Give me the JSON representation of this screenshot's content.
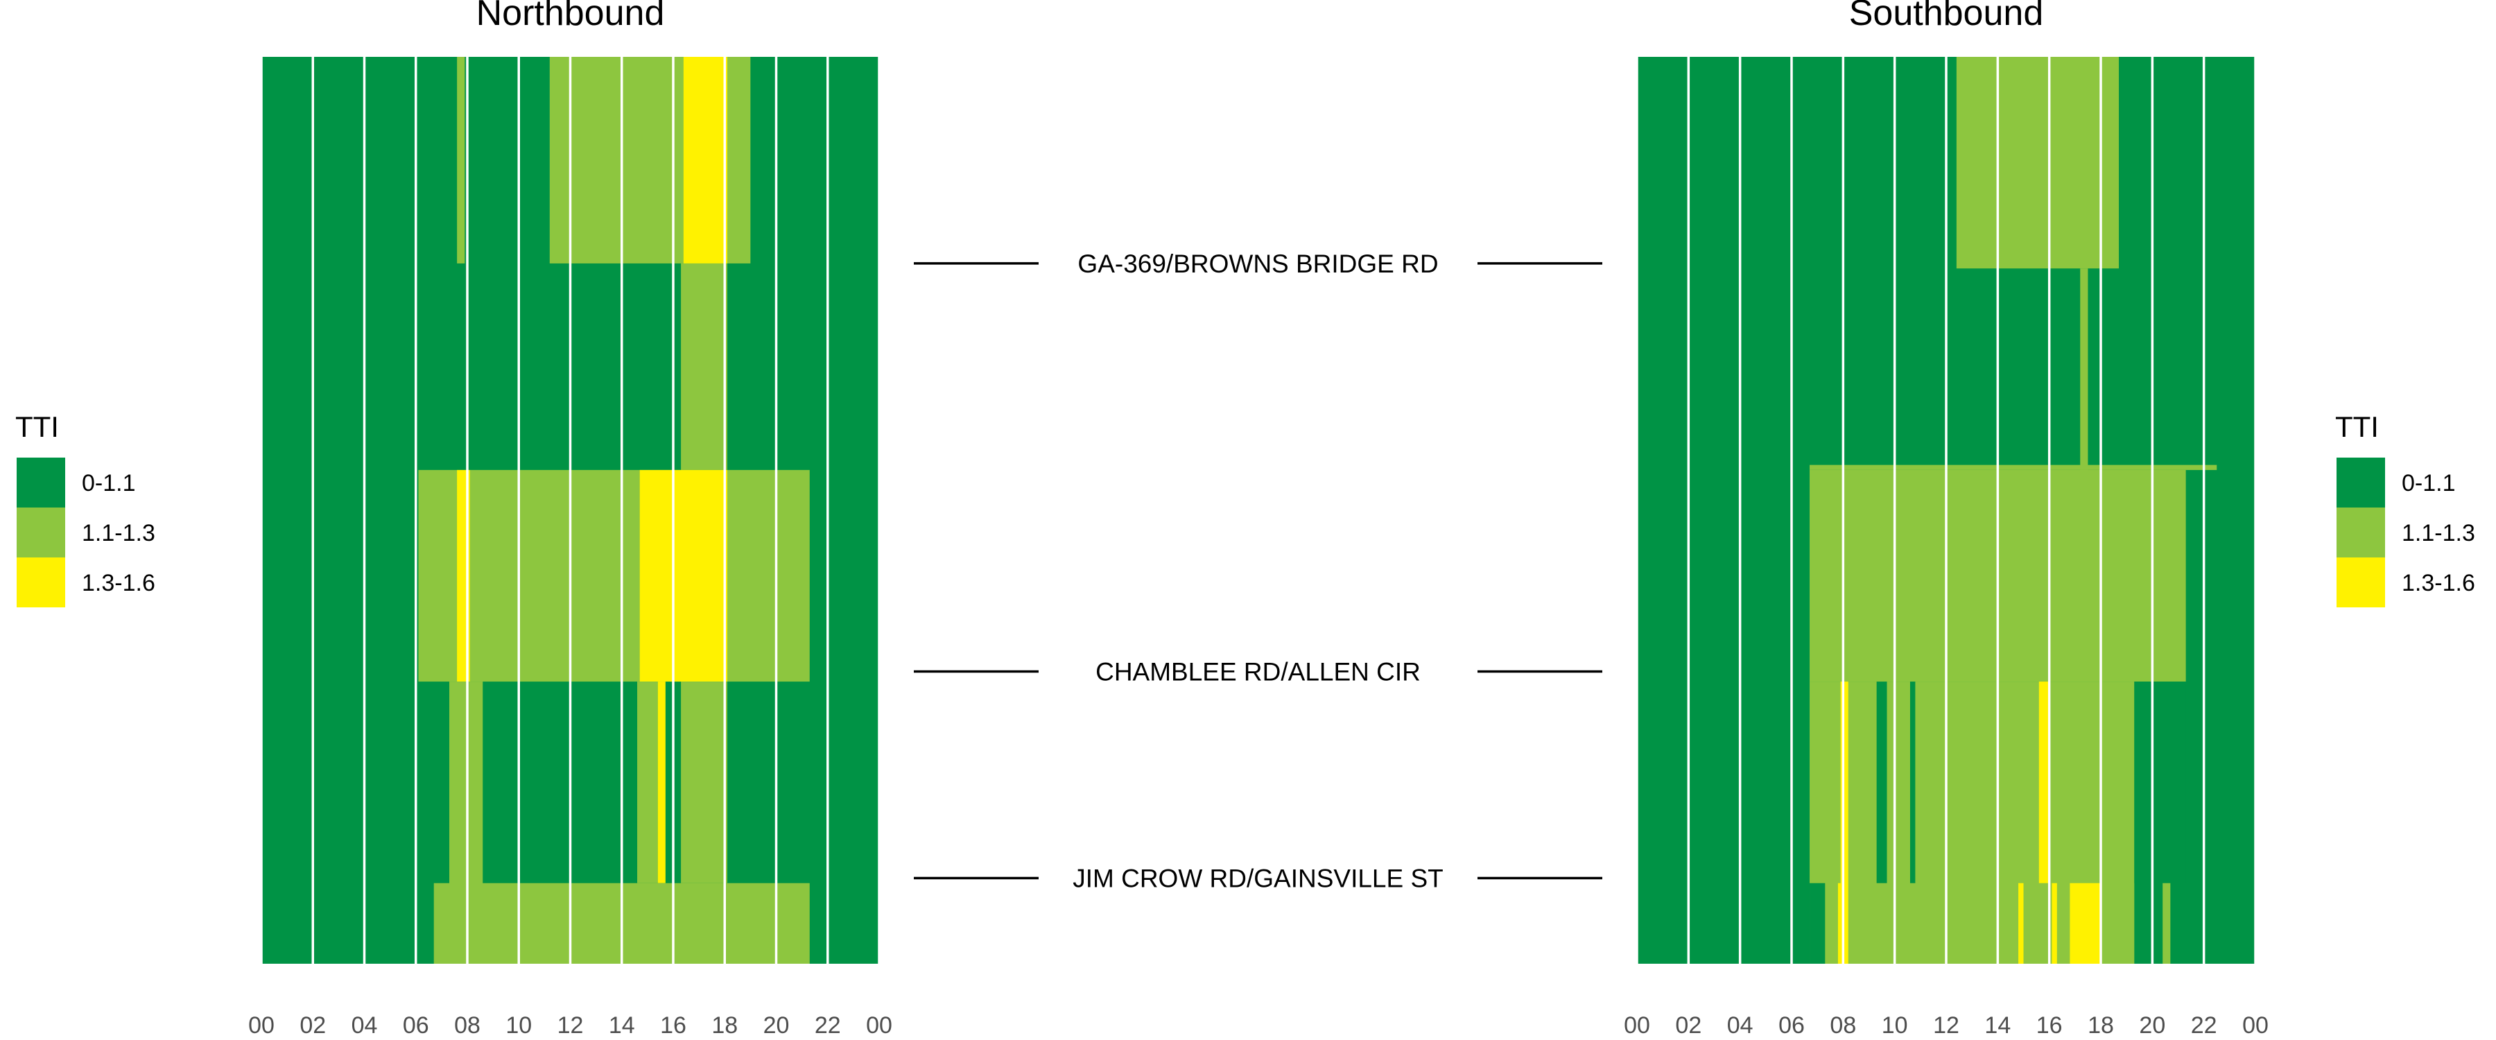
{
  "chart_data": {
    "type": "heatmap",
    "legend": {
      "title": "TTI",
      "position": "both sides (left and right)",
      "entries": [
        {
          "label": "0-1.1",
          "color": "#009345"
        },
        {
          "label": "1.1-1.3",
          "color": "#8DC63F"
        },
        {
          "label": "1.3-1.6",
          "color": "#FFF200"
        }
      ]
    },
    "x_axis": {
      "range_hours": [
        0,
        24
      ],
      "tick_labels": [
        "00",
        "02",
        "04",
        "06",
        "08",
        "10",
        "12",
        "14",
        "16",
        "18",
        "20",
        "22",
        "00"
      ]
    },
    "y_axis": {
      "range_miles": [
        0,
        9
      ],
      "note": "distance along corridor, increasing upward (approximate)"
    },
    "segment_markers": [
      {
        "label": "GA-369/BROWNS BRIDGE RD",
        "position": 6.95
      },
      {
        "label": "CHAMBLEE RD/ALLEN CIR",
        "position": 2.9
      },
      {
        "label": "JIM CROW RD/GAINSVILLE ST",
        "position": 0.85
      }
    ],
    "panels": [
      {
        "title": "Northbound",
        "background_class": "0-1.1",
        "cells": [
          {
            "hours": [
              11.2,
              19.0
            ],
            "miles": [
              6.95,
              9.0
            ],
            "class": "1.1-1.3"
          },
          {
            "hours": [
              7.6,
              7.9
            ],
            "miles": [
              6.95,
              9.0
            ],
            "class": "1.1-1.3"
          },
          {
            "hours": [
              16.4,
              18.1
            ],
            "miles": [
              6.95,
              9.0
            ],
            "class": "1.3-1.6"
          },
          {
            "hours": [
              16.3,
              18.1
            ],
            "miles": [
              4.9,
              6.95
            ],
            "class": "1.1-1.3"
          },
          {
            "hours": [
              6.1,
              21.3
            ],
            "miles": [
              2.8,
              4.9
            ],
            "class": "1.1-1.3"
          },
          {
            "hours": [
              7.6,
              8.1
            ],
            "miles": [
              2.8,
              4.9
            ],
            "class": "1.3-1.6"
          },
          {
            "hours": [
              14.7,
              18.1
            ],
            "miles": [
              2.8,
              4.9
            ],
            "class": "1.3-1.6"
          },
          {
            "hours": [
              7.3,
              8.6
            ],
            "miles": [
              0.0,
              2.8
            ],
            "class": "1.1-1.3"
          },
          {
            "hours": [
              14.6,
              15.4
            ],
            "miles": [
              0.8,
              2.8
            ],
            "class": "1.1-1.3"
          },
          {
            "hours": [
              15.4,
              15.7
            ],
            "miles": [
              0.8,
              2.8
            ],
            "class": "1.3-1.6"
          },
          {
            "hours": [
              16.3,
              18.1
            ],
            "miles": [
              0.8,
              2.8
            ],
            "class": "1.1-1.3"
          },
          {
            "hours": [
              6.7,
              21.3
            ],
            "miles": [
              0.0,
              0.8
            ],
            "class": "1.1-1.3"
          }
        ]
      },
      {
        "title": "Southbound",
        "background_class": "0-1.1",
        "cells": [
          {
            "hours": [
              12.4,
              18.7
            ],
            "miles": [
              6.9,
              9.0
            ],
            "class": "1.1-1.3"
          },
          {
            "hours": [
              17.2,
              17.5
            ],
            "miles": [
              4.9,
              6.9
            ],
            "class": "1.1-1.3"
          },
          {
            "hours": [
              6.7,
              22.5
            ],
            "miles": [
              4.9,
              4.95
            ],
            "class": "1.1-1.3"
          },
          {
            "hours": [
              6.7,
              21.3
            ],
            "miles": [
              2.8,
              4.9
            ],
            "class": "1.1-1.3"
          },
          {
            "hours": [
              6.7,
              19.3
            ],
            "miles": [
              0.0,
              2.8
            ],
            "class": "1.1-1.3"
          },
          {
            "hours": [
              7.9,
              8.2
            ],
            "miles": [
              0.0,
              2.8
            ],
            "class": "1.3-1.6"
          },
          {
            "hours": [
              9.3,
              9.7
            ],
            "miles": [
              0.8,
              2.8
            ],
            "class": "0-1.1"
          },
          {
            "hours": [
              10.6,
              10.8
            ],
            "miles": [
              0.8,
              2.8
            ],
            "class": "0-1.1"
          },
          {
            "hours": [
              15.6,
              16.0
            ],
            "miles": [
              0.8,
              2.8
            ],
            "class": "1.3-1.6"
          },
          {
            "hours": [
              19.3,
              21.3
            ],
            "miles": [
              0.8,
              2.8
            ],
            "class": "0-1.1"
          },
          {
            "hours": [
              20.4,
              20.7
            ],
            "miles": [
              0.0,
              0.8
            ],
            "class": "1.1-1.3"
          },
          {
            "hours": [
              6.7,
              7.3
            ],
            "miles": [
              0.0,
              0.8
            ],
            "class": "0-1.1"
          },
          {
            "hours": [
              16.8,
              18.0
            ],
            "miles": [
              0.0,
              0.8
            ],
            "class": "1.3-1.6"
          },
          {
            "hours": [
              16.1,
              16.3
            ],
            "miles": [
              0.0,
              0.8
            ],
            "class": "1.3-1.6"
          },
          {
            "hours": [
              14.8,
              15.0
            ],
            "miles": [
              0.0,
              0.8
            ],
            "class": "1.3-1.6"
          },
          {
            "hours": [
              7.8,
              8.0
            ],
            "miles": [
              0.0,
              0.8
            ],
            "class": "1.3-1.6"
          }
        ]
      }
    ]
  }
}
